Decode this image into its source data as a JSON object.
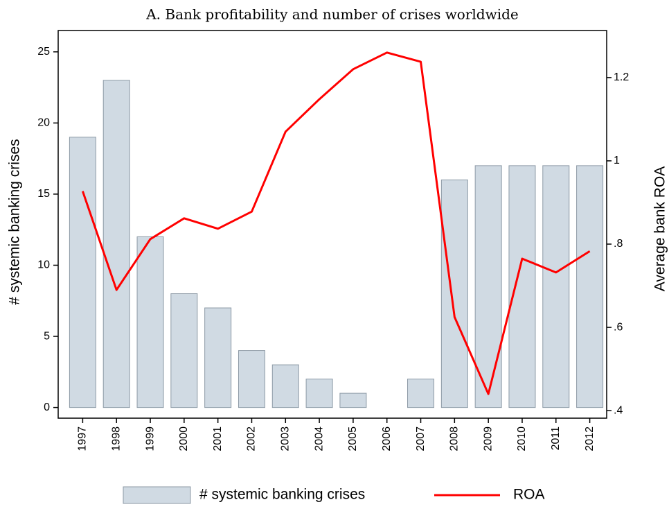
{
  "chart_data": {
    "type": "combo",
    "title": "A. Bank profitability and number of crises worldwide",
    "y_label": "# systemic banking crises",
    "y2_label": "Average bank ROA",
    "categories": [
      "1997",
      "1998",
      "1999",
      "2000",
      "2001",
      "2002",
      "2003",
      "2004",
      "2005",
      "2006",
      "2007",
      "2008",
      "2009",
      "2010",
      "2011",
      "2012"
    ],
    "series": [
      {
        "name": "# systemic banking crises",
        "type": "bar",
        "color": "#d0dae3",
        "values": [
          19,
          23,
          12,
          8,
          7,
          4,
          3,
          2,
          1,
          0,
          2,
          16,
          17,
          17,
          17,
          17
        ]
      },
      {
        "name": "ROA",
        "type": "line",
        "axis": "y2",
        "color": "#ff0000",
        "values": [
          0.927,
          0.69,
          0.812,
          0.862,
          0.837,
          0.878,
          1.07,
          1.148,
          1.22,
          1.26,
          1.238,
          0.625,
          0.44,
          0.765,
          0.732,
          0.783
        ]
      }
    ],
    "ylim": [
      -0.75,
      26.5
    ],
    "yticks": [
      0,
      5,
      10,
      15,
      20,
      25
    ],
    "y2lim": [
      0.382,
      1.313
    ],
    "y2ticks": [
      {
        "value": 0.4,
        "label": ".4"
      },
      {
        "value": 0.6,
        "label": ".6"
      },
      {
        "value": 0.8,
        "label": ".8"
      },
      1,
      1.2
    ],
    "legend": "bottom"
  }
}
